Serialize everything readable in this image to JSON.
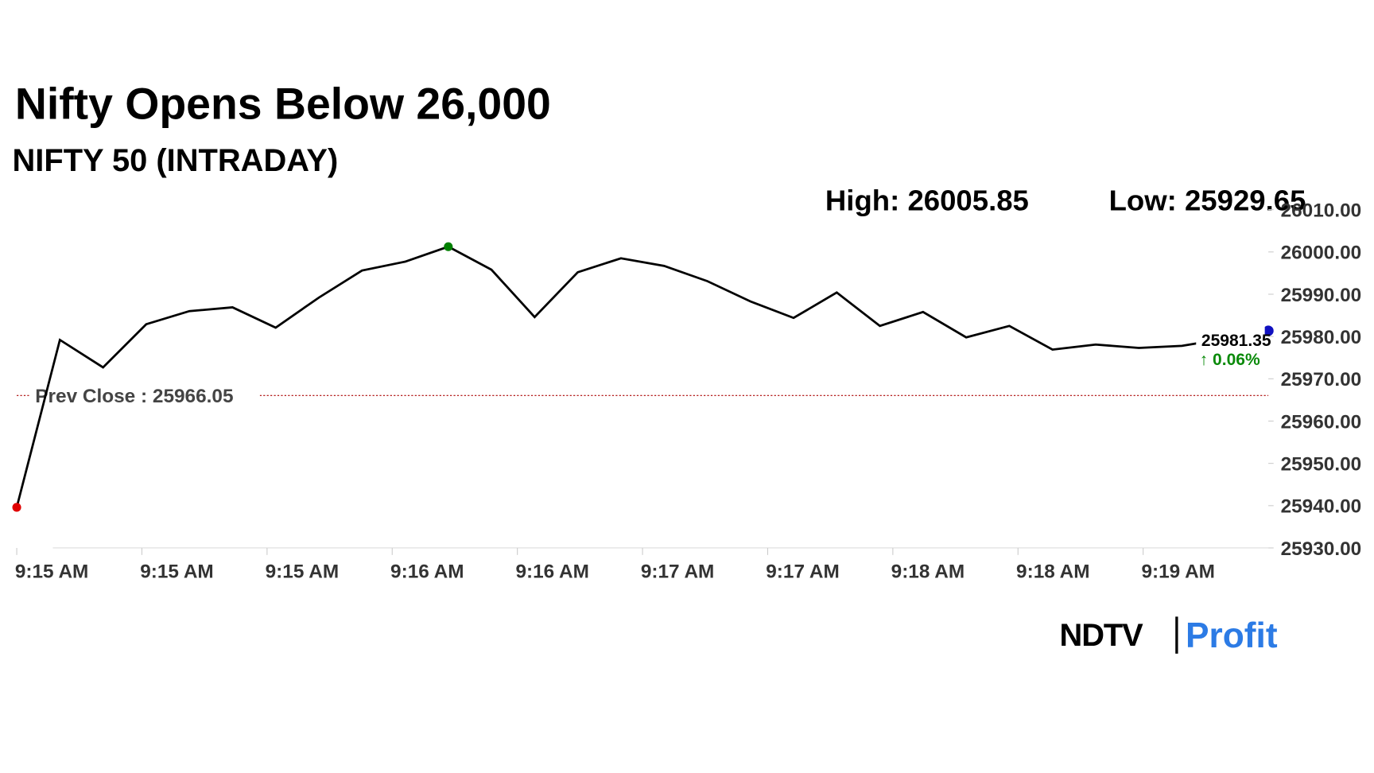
{
  "chart_data": {
    "type": "line",
    "title": "Nifty Opens Below 26,000",
    "subtitle": "NIFTY 50 (INTRADAY)",
    "high_label": "High:",
    "high": 26005.85,
    "low_label": "Low:",
    "low": 25929.65,
    "prev_close_label": "Prev Close :",
    "prev_close": 25966.05,
    "last_value": 25981.35,
    "change_label": "↑ 0.06%",
    "x": [
      0,
      1,
      2,
      3,
      4,
      5,
      6,
      7,
      8,
      9,
      10,
      11,
      12,
      13,
      14,
      15,
      16,
      17,
      18,
      19,
      20,
      21,
      22,
      23,
      24,
      25,
      26,
      27,
      28,
      29
    ],
    "xlim": [
      0,
      29
    ],
    "xticks": [
      {
        "value": 0,
        "label": "9:15 AM"
      },
      {
        "value": 2.9,
        "label": "9:15 AM"
      },
      {
        "value": 5.8,
        "label": "9:15 AM"
      },
      {
        "value": 8.7,
        "label": "9:16 AM"
      },
      {
        "value": 11.6,
        "label": "9:16 AM"
      },
      {
        "value": 14.5,
        "label": "9:17 AM"
      },
      {
        "value": 17.4,
        "label": "9:17 AM"
      },
      {
        "value": 20.3,
        "label": "9:18 AM"
      },
      {
        "value": 23.2,
        "label": "9:18 AM"
      },
      {
        "value": 26.1,
        "label": "9:19 AM"
      }
    ],
    "series": [
      {
        "name": "NIFTY 50",
        "color": "#000000",
        "values": [
          25939.6,
          25979.2,
          25972.7,
          25982.9,
          25986.0,
          25986.9,
          25982.1,
          25989.2,
          25995.6,
          25997.7,
          26001.25,
          25995.8,
          25984.6,
          25995.2,
          25998.5,
          25996.7,
          25993.1,
          25988.3,
          25984.4,
          25990.4,
          25982.5,
          25985.8,
          25979.8,
          25982.5,
          25976.9,
          25978.1,
          25977.3,
          25977.8,
          25979.5,
          25981.35
        ]
      }
    ],
    "ylim": [
      25930,
      26010
    ],
    "yticks": [
      {
        "value": 25930,
        "label": "25930.00"
      },
      {
        "value": 25940,
        "label": "25940.00"
      },
      {
        "value": 25950,
        "label": "25950.00"
      },
      {
        "value": 25960,
        "label": "25960.00"
      },
      {
        "value": 25970,
        "label": "25970.00"
      },
      {
        "value": 25980,
        "label": "25980.00"
      },
      {
        "value": 25990,
        "label": "25990.00"
      },
      {
        "value": 26000,
        "label": "26000.00"
      },
      {
        "value": 26010,
        "label": "26010.00"
      }
    ],
    "markers": {
      "open_color": "#e00000",
      "high_color": "#008000",
      "last_color": "#1010c0",
      "high_index": 10
    },
    "logo": {
      "brand": "NDTV",
      "product": "Profit"
    }
  }
}
